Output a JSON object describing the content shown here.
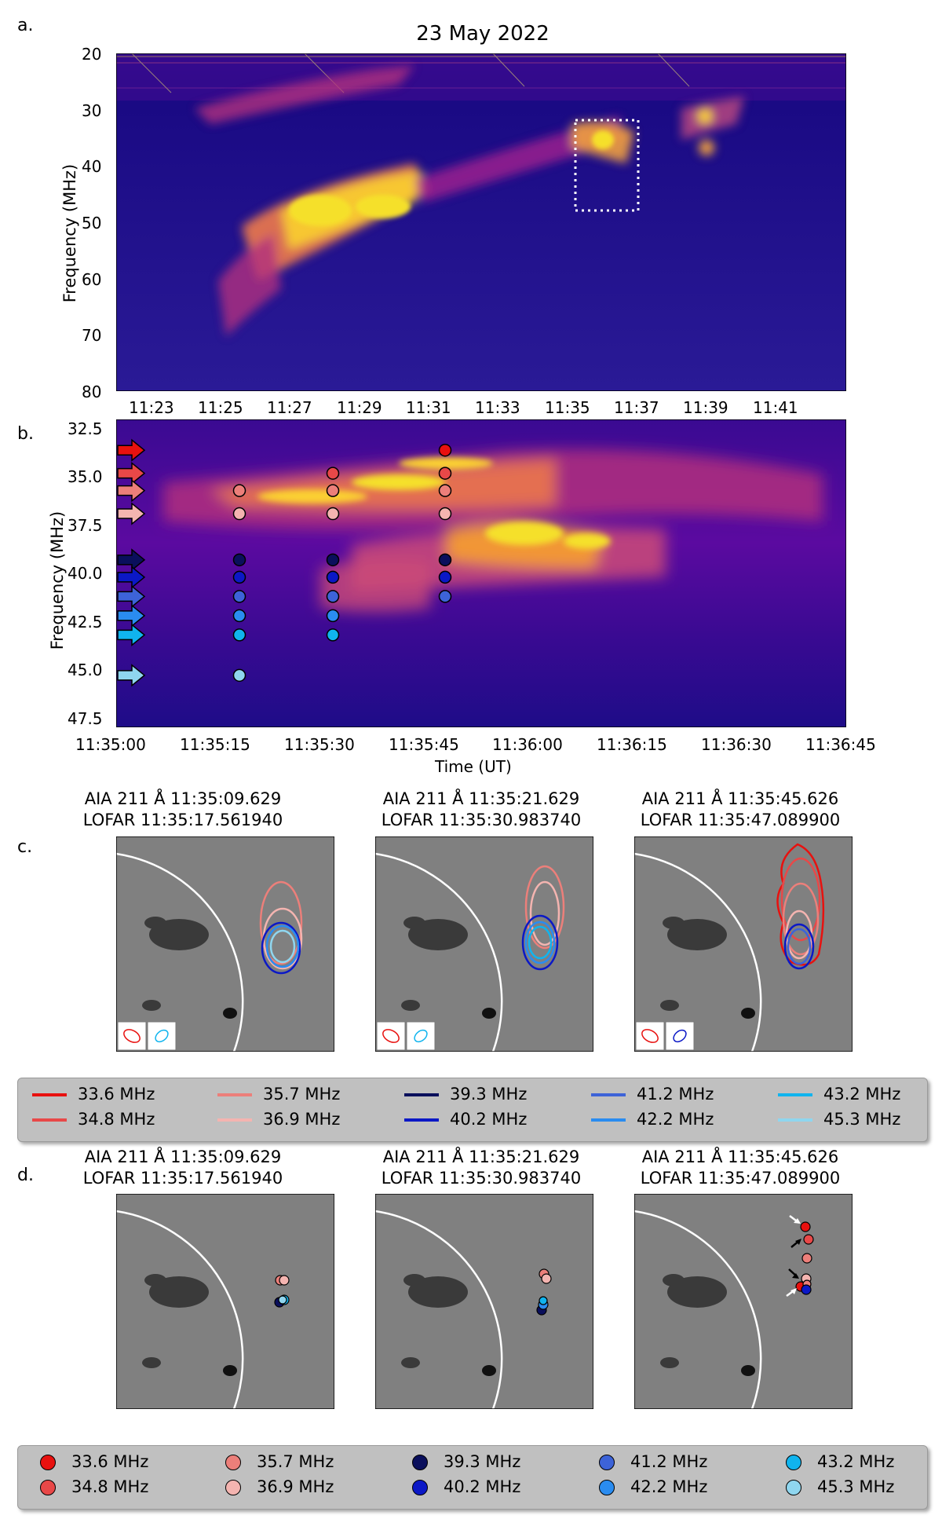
{
  "figure": {
    "panel_labels": {
      "a": "a.",
      "b": "b.",
      "c": "c.",
      "d": "d."
    }
  },
  "panel_a": {
    "title": "23 May 2022",
    "ylabel": "Frequency (MHz)",
    "yticks": [
      "20",
      "30",
      "40",
      "50",
      "60",
      "70",
      "80"
    ],
    "xticks": [
      "11:23",
      "11:25",
      "11:27",
      "11:29",
      "11:31",
      "11:33",
      "11:35",
      "11:37",
      "11:39",
      "11:41"
    ],
    "colormap": [
      "#0d0887",
      "#5b02a3",
      "#9a179b",
      "#cb4678",
      "#eb7852",
      "#fbb32f",
      "#f0f921"
    ]
  },
  "panel_b": {
    "ylabel": "Frequency (MHz)",
    "xlabel": "Time (UT)",
    "yticks": [
      "32.5",
      "35.0",
      "37.5",
      "40.0",
      "42.5",
      "45.0",
      "47.5"
    ],
    "xticks": [
      "11:35:00",
      "11:35:15",
      "11:35:30",
      "11:35:45",
      "11:36:00",
      "11:36:15",
      "11:36:30",
      "11:36:45"
    ]
  },
  "frequencies": [
    {
      "label": "33.6 MHz",
      "mhz": 33.6,
      "color": "#e8110f"
    },
    {
      "label": "34.8 MHz",
      "mhz": 34.8,
      "color": "#e84848"
    },
    {
      "label": "35.7 MHz",
      "mhz": 35.7,
      "color": "#ec7f7a"
    },
    {
      "label": "36.9 MHz",
      "mhz": 36.9,
      "color": "#f4b4b0"
    },
    {
      "label": "39.3 MHz",
      "mhz": 39.3,
      "color": "#0a0f5c"
    },
    {
      "label": "40.2 MHz",
      "mhz": 40.2,
      "color": "#0b18c6"
    },
    {
      "label": "41.2 MHz",
      "mhz": 41.2,
      "color": "#3d63d8"
    },
    {
      "label": "42.2 MHz",
      "mhz": 42.2,
      "color": "#2a8cf0"
    },
    {
      "label": "43.2 MHz",
      "mhz": 43.2,
      "color": "#10b4ee"
    },
    {
      "label": "45.3 MHz",
      "mhz": 45.3,
      "color": "#8fd6ef"
    }
  ],
  "image_panels": [
    {
      "aia": "AIA 211 Å 11:35:09.629",
      "lofar": "LOFAR 11:35:17.561940"
    },
    {
      "aia": "AIA 211 Å 11:35:21.629",
      "lofar": "LOFAR 11:35:30.983740"
    },
    {
      "aia": "AIA 211 Å 11:35:45.626",
      "lofar": "LOFAR 11:35:47.089900"
    }
  ]
}
